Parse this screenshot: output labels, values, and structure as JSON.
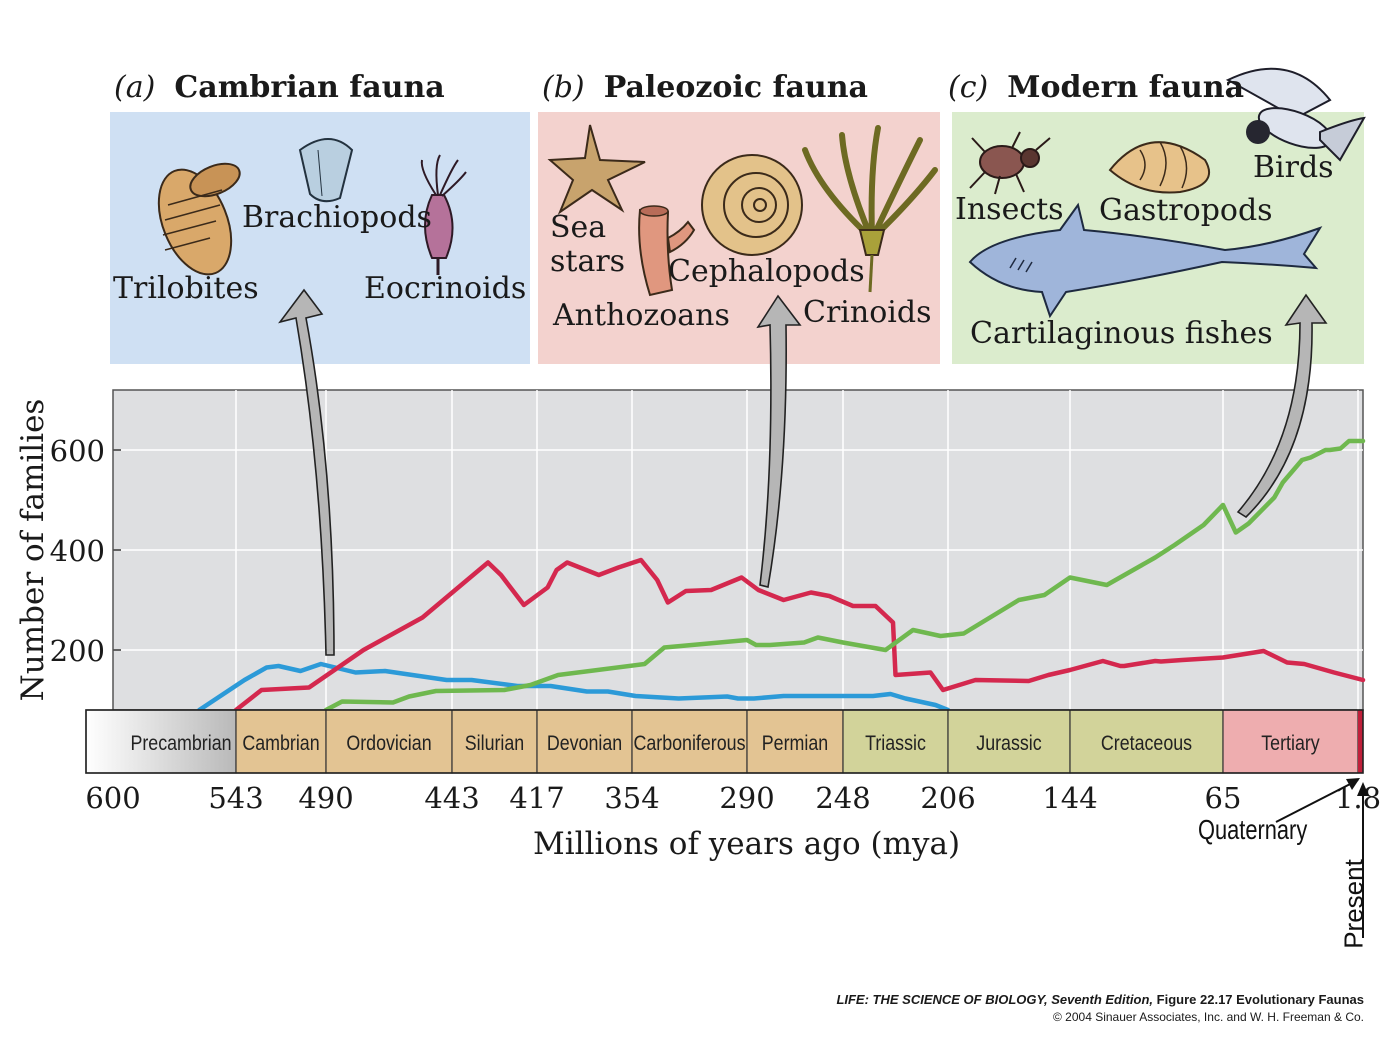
{
  "panels": [
    {
      "letter": "(a)",
      "title": "Cambrian fauna",
      "color": "#cfe0f3",
      "labels": [
        "Brachiopods",
        "Trilobites",
        "Eocrinoids"
      ]
    },
    {
      "letter": "(b)",
      "title": "Paleozoic fauna",
      "color": "#f3d2ce",
      "labels": [
        "Sea",
        "stars",
        "Cephalopods",
        "Anthozoans",
        "Crinoids"
      ]
    },
    {
      "letter": "(c)",
      "title": "Modern fauna",
      "color": "#dbeccd",
      "labels": [
        "Birds",
        "Insects",
        "Gastropods",
        "Cartilaginous fishes"
      ]
    }
  ],
  "chart_data": {
    "type": "line",
    "title": "",
    "xlabel": "Millions of years ago (mya)",
    "ylabel": "Number of families",
    "xlim": [
      600,
      0
    ],
    "ylim": [
      80,
      720
    ],
    "y_ticks": [
      200,
      400,
      600
    ],
    "grid": true,
    "x_ticks": [
      "600",
      "543",
      "490",
      "443",
      "417",
      "354",
      "290",
      "248",
      "206",
      "144",
      "65",
      "1.8"
    ],
    "periods": [
      {
        "name": "Precambrian",
        "color": "#d9d9d9"
      },
      {
        "name": "Cambrian",
        "color": "#e3c493"
      },
      {
        "name": "Ordovician",
        "color": "#e3c493"
      },
      {
        "name": "Silurian",
        "color": "#e3c493"
      },
      {
        "name": "Devonian",
        "color": "#e3c493"
      },
      {
        "name": "Carboniferous",
        "color": "#e3c493"
      },
      {
        "name": "Permian",
        "color": "#e3c493"
      },
      {
        "name": "Triassic",
        "color": "#d2d39a"
      },
      {
        "name": "Jurassic",
        "color": "#d2d39a"
      },
      {
        "name": "Cretaceous",
        "color": "#d2d39a"
      },
      {
        "name": "Tertiary",
        "color": "#eeadaf"
      }
    ],
    "quaternary_label": "Quaternary",
    "present_label": "Present",
    "series": [
      {
        "color": "#2c9ad8",
        "x": [
          560,
          538,
          525,
          518,
          505,
          493,
          479,
          468,
          445,
          437,
          423,
          417,
          408,
          384,
          370,
          352,
          328,
          301,
          295,
          287,
          274,
          236,
          229,
          223,
          211,
          206
        ],
        "y": [
          80,
          140,
          165,
          168,
          158,
          172,
          155,
          158,
          140,
          140,
          128,
          128,
          128,
          117,
          117,
          108,
          103,
          107,
          103,
          103,
          108,
          108,
          112,
          103,
          90,
          80
        ]
      },
      {
        "color": "#d4284e",
        "x": [
          543,
          528,
          500,
          476,
          454,
          432,
          428,
          421,
          410,
          404,
          397,
          376,
          363,
          349,
          340,
          334,
          324,
          310,
          293,
          285,
          274,
          262,
          254,
          244,
          235,
          228,
          227,
          213,
          208,
          192,
          165,
          155,
          144,
          127,
          118,
          116,
          100,
          97,
          86,
          65,
          46,
          35,
          27,
          13,
          0
        ],
        "y": [
          80,
          120,
          125,
          200,
          265,
          375,
          350,
          290,
          325,
          360,
          375,
          350,
          365,
          380,
          340,
          295,
          318,
          320,
          345,
          320,
          300,
          315,
          308,
          288,
          288,
          255,
          150,
          155,
          120,
          140,
          138,
          150,
          160,
          178,
          168,
          168,
          178,
          177,
          180,
          185,
          198,
          175,
          172,
          155,
          140
        ]
      },
      {
        "color": "#6fb84f",
        "x": [
          490,
          484,
          465,
          459,
          449,
          427,
          419,
          403,
          347,
          336,
          290,
          286,
          280,
          265,
          259,
          248,
          231,
          220,
          209,
          198,
          170,
          157,
          144,
          125,
          100,
          90,
          75,
          65,
          59,
          53,
          41,
          37,
          28,
          24,
          17,
          15,
          10,
          6,
          0
        ],
        "y": [
          80,
          97,
          95,
          107,
          118,
          120,
          130,
          150,
          172,
          205,
          220,
          210,
          210,
          215,
          225,
          215,
          200,
          240,
          228,
          233,
          300,
          310,
          345,
          330,
          385,
          410,
          450,
          490,
          435,
          453,
          505,
          535,
          580,
          585,
          600,
          600,
          603,
          618,
          618
        ]
      }
    ]
  },
  "credit": {
    "line1_italic": "LIFE: THE SCIENCE OF BIOLOGY, Seventh Edition,",
    "line1_rest": " Figure 22.17 Evolutionary Faunas",
    "line2": "© 2004 Sinauer Associates, Inc. and W. H. Freeman & Co."
  }
}
